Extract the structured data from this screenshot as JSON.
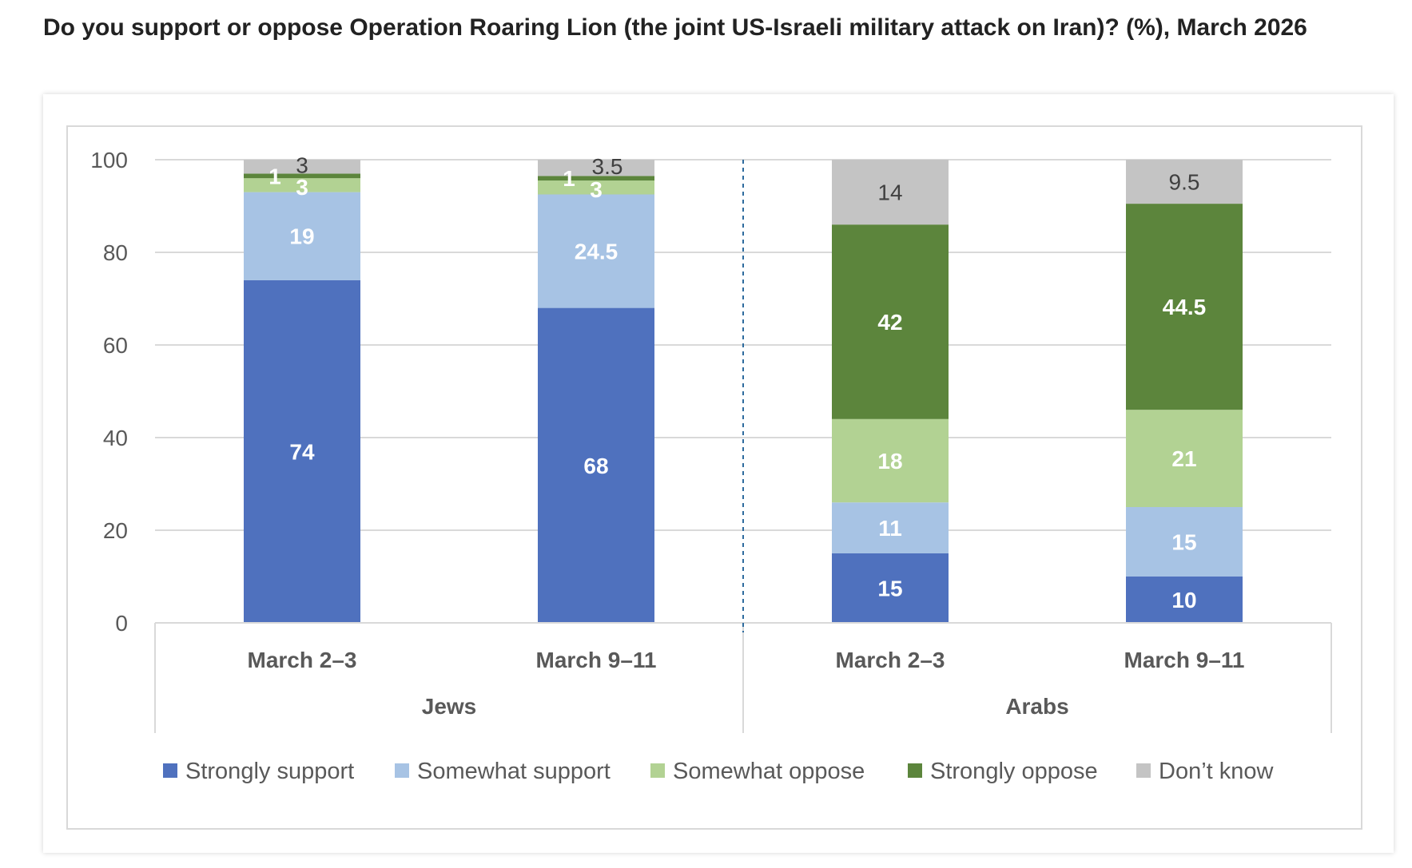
{
  "title": "Do you support or oppose Operation Roaring Lion (the joint US-Israeli military attack on Iran)? (%), March 2026",
  "colors": {
    "strongly_support": "#4F71BE",
    "somewhat_support": "#A7C3E4",
    "somewhat_oppose": "#B2D293",
    "strongly_oppose": "#5C853C",
    "dont_know": "#C4C4C4",
    "grid": "#D9D9D9",
    "axis_text": "#595959",
    "label_light": "#FFFFFF",
    "label_dark": "#404040",
    "divider": "#2E6B9E"
  },
  "chart_data": {
    "type": "bar",
    "stacked": true,
    "title": "Do you support or oppose Operation Roaring Lion (the joint US-Israeli military attack on Iran)? (%), March 2026",
    "ylim": [
      0,
      100
    ],
    "yticks": [
      0,
      20,
      40,
      60,
      80,
      100
    ],
    "grid": true,
    "legend_position": "bottom",
    "groups": [
      {
        "name": "Jews",
        "categories": [
          "March 2–3",
          "March 9–11"
        ]
      },
      {
        "name": "Arabs",
        "categories": [
          "March 2–3",
          "March 9–11"
        ]
      }
    ],
    "categories": [
      "March 2–3",
      "March 9–11",
      "March 2–3",
      "March 9–11"
    ],
    "series": [
      {
        "key": "strongly_support",
        "name": "Strongly support",
        "values": [
          74,
          68,
          15,
          10
        ],
        "labels": [
          "74",
          "68",
          "15",
          "10"
        ]
      },
      {
        "key": "somewhat_support",
        "name": "Somewhat support",
        "values": [
          19,
          24.5,
          11,
          15
        ],
        "labels": [
          "19",
          "24.5",
          "11",
          "15"
        ]
      },
      {
        "key": "somewhat_oppose",
        "name": "Somewhat oppose",
        "values": [
          3,
          3,
          18,
          21
        ],
        "labels": [
          "3",
          "3",
          "18",
          "21"
        ]
      },
      {
        "key": "strongly_oppose",
        "name": "Strongly oppose",
        "values": [
          1,
          1,
          42,
          44.5
        ],
        "labels": [
          "1",
          "1",
          "42",
          "44.5"
        ]
      },
      {
        "key": "dont_know",
        "name": "Don’t know",
        "values": [
          3,
          3.5,
          14,
          9.5
        ],
        "labels": [
          "3",
          "3.5",
          "14",
          "9.5"
        ]
      }
    ]
  }
}
